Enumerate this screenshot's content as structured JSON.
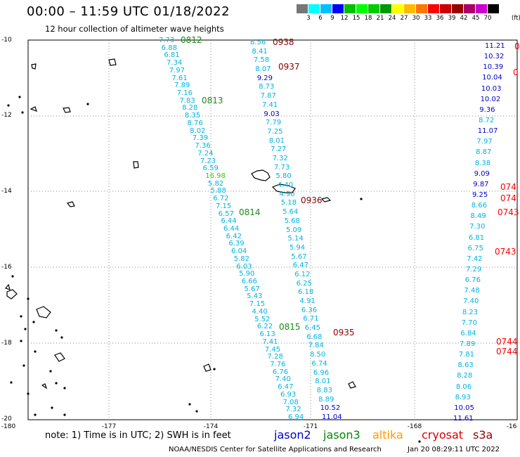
{
  "title": "00:00 – 11:59 UTC 01/18/2022",
  "subtitle": "12 hour collection of altimeter wave heights",
  "colorbar": {
    "unit": "(ft)",
    "colors": [
      "#777777",
      "#00ffff",
      "#00bfff",
      "#0000ff",
      "#00bf00",
      "#00ff00",
      "#00cc00",
      "#009900",
      "#ffff00",
      "#ffbb00",
      "#ff7700",
      "#ff0000",
      "#cc0000",
      "#990000",
      "#aa0066",
      "#cc00cc",
      "#000000"
    ],
    "labels": [
      "3",
      "6",
      "9",
      "12",
      "15",
      "18",
      "21",
      "24",
      "27",
      "30",
      "33",
      "36",
      "39",
      "42",
      "45",
      "70"
    ]
  },
  "axes": {
    "y_ticks": [
      "-10",
      "-12",
      "-14",
      "-16",
      "-18",
      "-20"
    ],
    "x_ticks": [
      "-180",
      "-177",
      "-174",
      "-171",
      "-168",
      "-16"
    ]
  },
  "pass_times": [
    {
      "text": "0812",
      "color": "#1a8a1a"
    },
    {
      "text": "0813",
      "color": "#1a8a1a"
    },
    {
      "text": "0814",
      "color": "#1a8a1a"
    },
    {
      "text": "0815",
      "color": "#1a8a1a"
    },
    {
      "text": "0938",
      "color": "#8b0000"
    },
    {
      "text": "0937",
      "color": "#8b0000"
    },
    {
      "text": "0936",
      "color": "#8b0000"
    },
    {
      "text": "0935",
      "color": "#8b0000"
    },
    {
      "text": "0743",
      "color": "#ff0000"
    },
    {
      "text": "0744",
      "color": "#ff0000"
    },
    {
      "text": "0744",
      "color": "#ff0000"
    },
    {
      "text": "0743",
      "color": "#ff0000"
    },
    {
      "text": "074",
      "color": "#ff0000"
    },
    {
      "text": "074",
      "color": "#ff0000"
    },
    {
      "text": "0",
      "color": "#ff0000"
    },
    {
      "text": "0",
      "color": "#ff0000"
    }
  ],
  "track_a_values": [
    "7.73",
    "6.88",
    "6.81",
    "7.34",
    "7.97",
    "7.61",
    "7.89",
    "7.16",
    "7.83",
    "8.28",
    "8.35",
    "8.76",
    "8.02",
    "7.39",
    "7.36",
    "7.24",
    "7.23",
    "6.59",
    "16.98",
    "5.82",
    "5.88",
    "6.72",
    "7.15",
    "6.57",
    "6.44",
    "6.44",
    "6.42",
    "6.39",
    "6.04",
    "5.82",
    "6.03",
    "5.90",
    "6.66",
    "5.67",
    "5.43",
    "7.15",
    "4.40",
    "5.52",
    "6.22",
    "6.13",
    "7.41",
    "7.45",
    "7.28",
    "7.76",
    "6.76",
    "7.40",
    "6.47",
    "6.93",
    "7.08",
    "7.32",
    "6.94"
  ],
  "track_b_values": [
    "8.56",
    "8.41",
    "7.58",
    "8.07",
    "9.29",
    "8.73",
    "7.87",
    "7.41",
    "9.03",
    "7.79",
    "7.25",
    "8.01",
    "7.27",
    "7.32",
    "7.73",
    "5.80",
    "4.40",
    "4.90",
    "5.18",
    "5.64",
    "5.68",
    "5.09",
    "5.14",
    "5.94",
    "5.67",
    "6.47",
    "6.12",
    "6.25",
    "6.18",
    "4.91",
    "6.36",
    "6.71",
    "6.45",
    "6.68",
    "7.84",
    "8.50",
    "6.74",
    "6.96",
    "8.01",
    "8.83",
    "8.89",
    "10.52",
    "11.04"
  ],
  "track_c_values": [
    "11.21",
    "10.32",
    "10.39",
    "10.04",
    "10.03",
    "10.02",
    "9.36",
    "8.72",
    "11.07",
    "7.97",
    "8.87",
    "8.38",
    "9.09",
    "9.87",
    "9.25",
    "8.66",
    "8.49",
    "7.30",
    "6.81",
    "6.75",
    "7.42",
    "7.29",
    "6.76",
    "7.48",
    "7.40",
    "8.23",
    "7.70",
    "6.84",
    "7.89",
    "7.81",
    "8.63",
    "8.28",
    "8.06",
    "8.93",
    "10.05",
    "11.61"
  ],
  "note": "note: 1) Time is in UTC; 2) SWH is in feet",
  "satellites": [
    {
      "name": "jason2",
      "color": "#0000cc"
    },
    {
      "name": "jason3",
      "color": "#008800"
    },
    {
      "name": "altika",
      "color": "#ff9900"
    },
    {
      "name": "cryosat",
      "color": "#dd0000"
    },
    {
      "name": "s3a",
      "color": "#990000"
    }
  ],
  "footer": "NOAA/NESDIS Center for Satellite Applications and Research",
  "footer_date": "Jan 20 08:29:11 UTC 2022"
}
